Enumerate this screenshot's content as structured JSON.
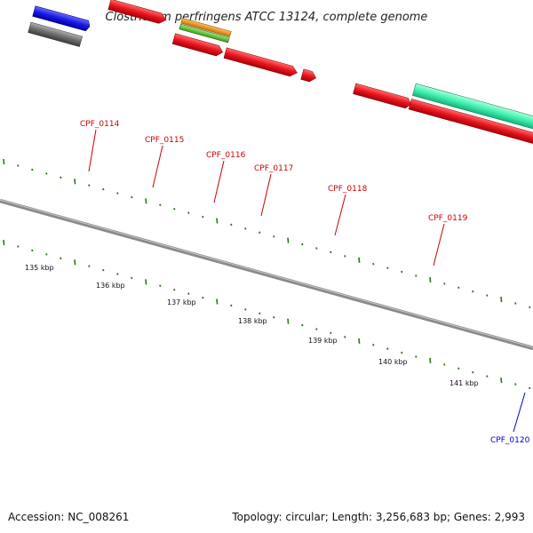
{
  "title": "Clostridium perfringens ATCC 13124, complete genome",
  "footer": {
    "accession": "Accession: NC_008261",
    "summary": "Topology: circular; Length: 3,256,683 bp; Genes: 2,993"
  },
  "scale_labels": [
    "135 kbp",
    "136 kbp",
    "137 kbp",
    "138 kbp",
    "139 kbp",
    "140 kbp",
    "141 kbp"
  ],
  "gene_labels": [
    "CPF_0114",
    "CPF_0115",
    "CPF_0116",
    "CPF_0117",
    "CPF_0118",
    "CPF_0119",
    "CPF_0120"
  ],
  "colors": {
    "backbone": "#777777",
    "red_gene": "#e8141e",
    "blue_gene": "#1a1ae6",
    "grey_gene": "#6e6e6e",
    "orange_gene": "#f29312",
    "green_gene": "#5cc238",
    "teal_gene": "#3ef0b0",
    "tick": "#2a7a12",
    "label_red": "#cc0000",
    "label_blue": "#0000cc"
  }
}
